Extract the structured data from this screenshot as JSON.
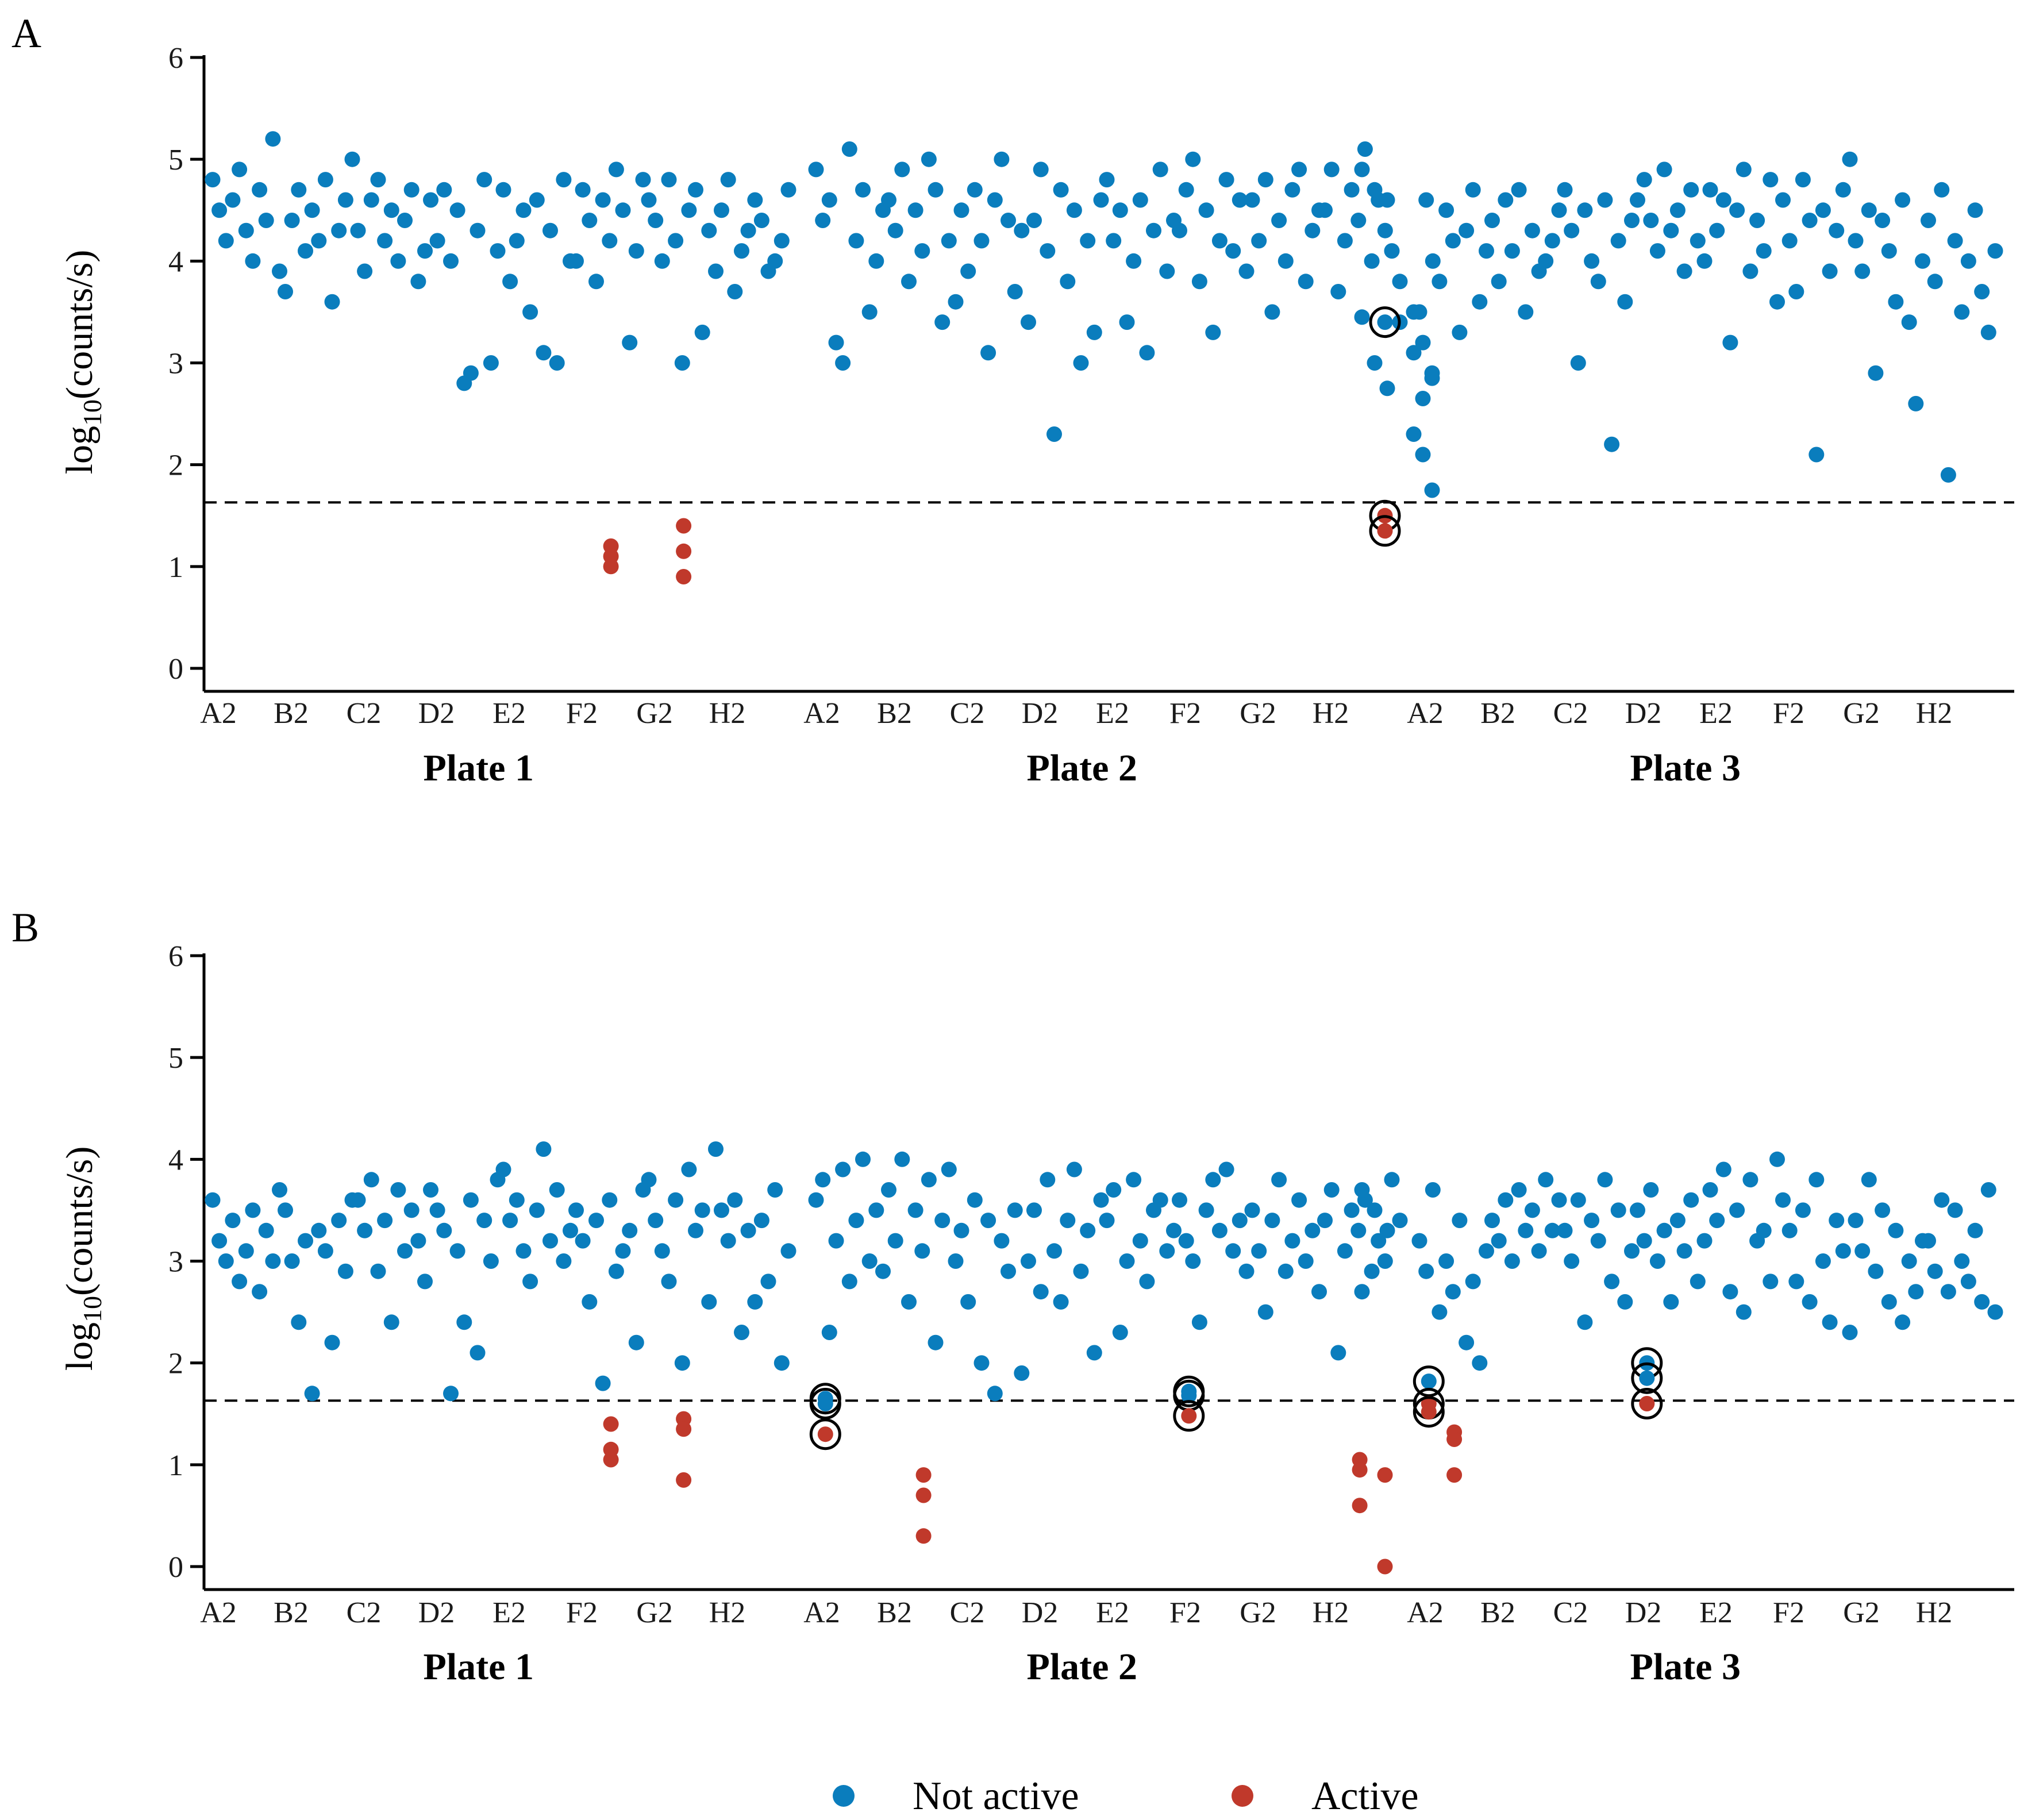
{
  "colors": {
    "not_active": "#0a7dbd",
    "active": "#c0392b",
    "axis": "#000000"
  },
  "legend": {
    "items": [
      {
        "label": "Not active",
        "color": "#0a7dbd"
      },
      {
        "label": "Active",
        "color": "#c0392b"
      }
    ]
  },
  "chart_data": [
    {
      "type": "scatter",
      "panel": "A",
      "title": "",
      "ylabel": "log10(counts/s)",
      "ylabel_main": "log",
      "ylabel_sub": "10",
      "ylabel_rest": "(counts/s)",
      "ylim": [
        0,
        6
      ],
      "yticks": [
        0,
        1,
        2,
        3,
        4,
        5,
        6
      ],
      "threshold": 1.63,
      "row_labels": [
        "A2",
        "B2",
        "C2",
        "D2",
        "E2",
        "F2",
        "G2",
        "H2"
      ],
      "wells_per_row": 11,
      "plates": [
        {
          "name": "Plate 1",
          "not_active": [
            [
              4.8,
              4.5,
              4.2,
              4.6,
              4.9,
              4.3,
              4.0,
              4.7,
              4.4,
              5.2,
              3.9
            ],
            [
              3.7,
              4.4,
              4.7,
              4.1,
              4.5,
              4.2,
              4.8,
              3.6,
              4.3,
              4.6,
              5.0
            ],
            [
              4.3,
              3.9,
              4.6,
              4.8,
              4.2,
              4.5,
              4.0,
              4.4,
              4.7,
              3.8,
              4.1
            ],
            [
              4.6,
              4.2,
              4.7,
              4.0,
              4.5,
              2.8,
              2.9,
              4.3,
              4.8,
              3.0,
              4.1
            ],
            [
              4.7,
              3.8,
              4.2,
              4.5,
              3.5,
              4.6,
              3.1,
              4.3,
              3.0,
              4.8,
              4.0
            ],
            [
              4.0,
              4.7,
              4.4,
              3.8,
              4.6,
              4.2,
              4.9,
              4.5,
              3.2,
              4.1,
              4.8
            ],
            [
              4.6,
              4.4,
              4.0,
              4.8,
              4.2,
              3.0,
              4.5,
              4.7,
              3.3,
              4.3,
              3.9
            ],
            [
              4.5,
              4.8,
              3.7,
              4.1,
              4.3,
              4.6,
              4.4,
              3.9,
              4.0,
              4.2,
              4.7
            ]
          ],
          "active": [
            {
              "row": 5,
              "values": [
                1.2,
                1.1,
                1.0
              ]
            },
            {
              "row": 6,
              "values": [
                1.4,
                1.15,
                0.9
              ]
            }
          ],
          "circled": []
        },
        {
          "name": "Plate 2",
          "not_active": [
            [
              4.9,
              4.4,
              4.6,
              3.2,
              3.0,
              5.1,
              4.2,
              4.7,
              3.5,
              4.0,
              4.5
            ],
            [
              4.6,
              4.3,
              4.9,
              3.8,
              4.5,
              4.1,
              5.0,
              4.7,
              3.4,
              4.2,
              3.6
            ],
            [
              4.5,
              3.9,
              4.7,
              4.2,
              3.1,
              4.6,
              5.0,
              4.4,
              3.7,
              4.3,
              3.4
            ],
            [
              4.4,
              4.9,
              4.1,
              2.3,
              4.7,
              3.8,
              4.5,
              3.0,
              4.2,
              3.3,
              4.6
            ],
            [
              4.8,
              4.2,
              4.5,
              3.4,
              4.0,
              4.6,
              3.1,
              4.3,
              4.9,
              3.9,
              4.4
            ],
            [
              4.3,
              4.7,
              5.0,
              3.8,
              4.5,
              3.3,
              4.2,
              4.8,
              4.1,
              4.6,
              3.9
            ],
            [
              4.6,
              4.2,
              4.8,
              3.5,
              4.4,
              4.0,
              4.7,
              4.9,
              3.8,
              4.3,
              4.5
            ],
            [
              4.5,
              4.9,
              3.7,
              4.2,
              4.7,
              4.4,
              5.1,
              4.0,
              4.6,
              4.3,
              4.1
            ]
          ],
          "active": [],
          "circled": []
        },
        {
          "name": "Plate 3",
          "not_active": [
            [
              3.5,
              4.6,
              4.0,
              3.8,
              4.5,
              4.2,
              3.3,
              4.3,
              4.7,
              3.6,
              4.1
            ],
            [
              4.4,
              3.8,
              4.6,
              4.1,
              4.7,
              3.5,
              4.3,
              3.9,
              4.0,
              4.2,
              4.5
            ],
            [
              4.7,
              4.3,
              3.0,
              4.5,
              4.0,
              3.8,
              4.6,
              2.2,
              4.2,
              3.6,
              4.4
            ],
            [
              4.6,
              4.8,
              4.4,
              4.1,
              4.9,
              4.3,
              4.5,
              3.9,
              4.7,
              4.2,
              4.0
            ],
            [
              4.7,
              4.3,
              4.6,
              3.2,
              4.5,
              4.9,
              3.9,
              4.4,
              4.1,
              4.8,
              3.6
            ],
            [
              4.6,
              4.2,
              3.7,
              4.8,
              4.4,
              2.1,
              4.5,
              3.9,
              4.3,
              4.7,
              5.0
            ],
            [
              4.2,
              3.9,
              4.5,
              2.9,
              4.4,
              4.1,
              3.6,
              4.6,
              3.4,
              2.6,
              4.0
            ],
            [
              4.4,
              3.8,
              4.7,
              1.9,
              4.2,
              3.5,
              4.0,
              4.5,
              3.7,
              3.3,
              4.1
            ]
          ],
          "active": [],
          "circled": []
        }
      ],
      "divider": {
        "not_active": [
          4.9,
          4.7,
          4.6,
          3.8,
          3.45,
          3.0,
          2.75,
          3.4
        ],
        "circled_not_active": [
          3.4
        ],
        "active": [
          1.5,
          1.35
        ],
        "circled_active": [
          1.5,
          1.35
        ]
      },
      "lead_in_plate3": {
        "not_active": [
          3.5,
          3.2,
          2.9,
          2.3,
          2.1,
          1.75,
          3.1,
          2.65,
          2.85
        ]
      }
    },
    {
      "type": "scatter",
      "panel": "B",
      "title": "",
      "ylabel": "log10(counts/s)",
      "ylabel_main": "log",
      "ylabel_sub": "10",
      "ylabel_rest": "(counts/s)",
      "ylim": [
        0,
        6
      ],
      "yticks": [
        0,
        1,
        2,
        3,
        4,
        5,
        6
      ],
      "threshold": 1.63,
      "row_labels": [
        "A2",
        "B2",
        "C2",
        "D2",
        "E2",
        "F2",
        "G2",
        "H2"
      ],
      "wells_per_row": 11,
      "plates": [
        {
          "name": "Plate 1",
          "not_active": [
            [
              3.6,
              3.2,
              3.0,
              3.4,
              2.8,
              3.1,
              3.5,
              2.7,
              3.3,
              3.0,
              3.7
            ],
            [
              3.5,
              3.0,
              2.4,
              3.2,
              1.7,
              3.3,
              3.1,
              2.2,
              3.4,
              2.9,
              3.6
            ],
            [
              3.6,
              3.3,
              3.8,
              2.9,
              3.4,
              2.4,
              3.7,
              3.1,
              3.5,
              3.2,
              2.8
            ],
            [
              3.7,
              3.5,
              3.3,
              1.7,
              3.1,
              2.4,
              3.6,
              2.1,
              3.4,
              3.0,
              3.8
            ],
            [
              3.9,
              3.4,
              3.6,
              3.1,
              2.8,
              3.5,
              4.1,
              3.2,
              3.7,
              3.0,
              3.3
            ],
            [
              3.5,
              3.2,
              2.6,
              3.4,
              1.8,
              3.6,
              2.9,
              3.1,
              3.3,
              2.2,
              3.7
            ],
            [
              3.8,
              3.4,
              3.1,
              2.8,
              3.6,
              2.0,
              3.9,
              3.3,
              3.5,
              2.6,
              4.1
            ],
            [
              3.5,
              3.2,
              3.6,
              2.3,
              3.3,
              2.6,
              3.4,
              2.8,
              3.7,
              2.0,
              3.1
            ]
          ],
          "active": [
            {
              "row": 5,
              "values": [
                1.4,
                1.15,
                1.05
              ]
            },
            {
              "row": 6,
              "values": [
                1.45,
                1.35,
                0.85
              ]
            }
          ],
          "circled": []
        },
        {
          "name": "Plate 2",
          "not_active": [
            [
              3.6,
              3.8,
              2.3,
              3.2,
              3.9,
              2.8,
              3.4,
              4.0,
              3.0,
              3.5,
              2.9
            ],
            [
              3.7,
              3.2,
              4.0,
              2.6,
              3.5,
              3.1,
              3.8,
              2.2,
              3.4,
              3.9,
              3.0
            ],
            [
              3.3,
              2.6,
              3.6,
              2.0,
              3.4,
              1.7,
              3.2,
              2.9,
              3.5,
              1.9,
              3.0
            ],
            [
              3.5,
              2.7,
              3.8,
              3.1,
              2.6,
              3.4,
              3.9,
              2.9,
              3.3,
              2.1,
              3.6
            ],
            [
              3.4,
              3.7,
              2.3,
              3.0,
              3.8,
              3.2,
              2.8,
              3.5,
              3.6,
              3.1,
              3.3
            ],
            [
              3.6,
              3.2,
              3.0,
              2.4,
              3.5,
              3.8,
              3.3,
              3.9,
              3.1,
              3.4,
              2.9
            ],
            [
              3.5,
              3.1,
              2.5,
              3.4,
              3.8,
              2.9,
              3.2,
              3.6,
              3.0,
              3.3,
              2.7
            ],
            [
              3.4,
              3.7,
              2.1,
              3.1,
              3.5,
              3.3,
              3.6,
              2.9,
              3.2,
              3.0,
              3.8
            ]
          ],
          "active": [
            {
              "row": 1,
              "values": [
                0.9,
                0.7,
                0.3
              ]
            },
            {
              "row": 7,
              "values": [
                1.05,
                0.95,
                0.6
              ]
            }
          ],
          "circled": [
            {
              "row": 0,
              "not_active": [
                1.65,
                1.6
              ],
              "active": [
                1.3
              ]
            },
            {
              "row": 5,
              "not_active": [
                1.72,
                1.68
              ],
              "active": [
                1.48
              ]
            }
          ]
        },
        {
          "name": "Plate 3",
          "not_active": [
            [
              3.2,
              2.9,
              3.7,
              2.5,
              3.0,
              2.7,
              3.4,
              2.2,
              2.8,
              2.0,
              3.1
            ],
            [
              3.4,
              3.2,
              3.6,
              3.0,
              3.7,
              3.3,
              3.5,
              3.1,
              3.8,
              3.3,
              3.6
            ],
            [
              3.3,
              3.0,
              3.6,
              2.4,
              3.4,
              3.2,
              3.8,
              2.8,
              3.5,
              2.6,
              3.1
            ],
            [
              3.5,
              3.2,
              3.7,
              3.0,
              3.3,
              2.6,
              3.4,
              3.1,
              3.6,
              2.8,
              3.2
            ],
            [
              3.7,
              3.4,
              3.9,
              2.7,
              3.5,
              2.5,
              3.8,
              3.2,
              3.3,
              2.8,
              4.0
            ],
            [
              3.6,
              3.3,
              2.8,
              3.5,
              2.6,
              3.8,
              3.0,
              2.4,
              3.4,
              3.1,
              2.3
            ],
            [
              3.4,
              3.1,
              3.8,
              2.9,
              3.5,
              2.6,
              3.3,
              2.4,
              3.0,
              2.7,
              3.2
            ],
            [
              3.2,
              2.9,
              3.6,
              2.7,
              3.5,
              3.0,
              2.8,
              3.3,
              2.6,
              3.7,
              2.5
            ]
          ],
          "active": [
            {
              "row": 0,
              "values": [
                1.32,
                1.25,
                0.9
              ]
            }
          ],
          "circled": [
            {
              "row": 0,
              "not_active": [
                1.82
              ],
              "active": [
                1.6,
                1.52
              ]
            },
            {
              "row": 3,
              "not_active": [
                2.0,
                1.85
              ],
              "active": [
                1.6
              ]
            }
          ]
        }
      ],
      "divider": {
        "not_active": [
          3.7,
          3.5,
          3.3,
          3.4,
          2.7
        ],
        "circled_not_active": [],
        "active": [
          0.9,
          0.0
        ],
        "circled_active": []
      },
      "lead_in_plate3": {
        "not_active": []
      }
    }
  ],
  "plate_labels": [
    "Plate 1",
    "Plate 2",
    "Plate 3"
  ]
}
